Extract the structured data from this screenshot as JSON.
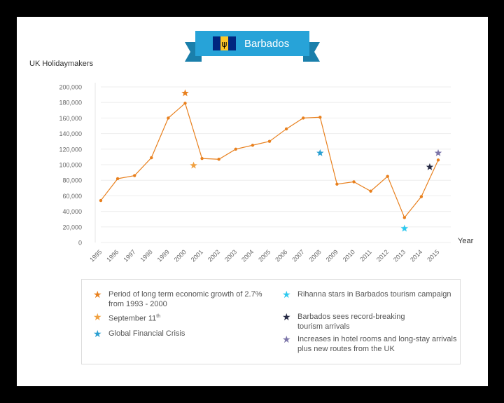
{
  "chart_data": {
    "type": "line",
    "title": "Barbados",
    "ylabel": "UK Holidaymakers",
    "xlabel": "Year",
    "ylim": [
      0,
      200000
    ],
    "yticks": [
      0,
      20000,
      40000,
      60000,
      80000,
      100000,
      120000,
      140000,
      160000,
      180000,
      200000
    ],
    "ytick_labels": [
      "0",
      "20,000",
      "40,000",
      "60,000",
      "80,000",
      "100,000",
      "120,000",
      "140,000",
      "160,000",
      "180,000",
      "200,000"
    ],
    "categories": [
      "1995",
      "1996",
      "1997",
      "1998",
      "1999",
      "2000",
      "2001",
      "2002",
      "2003",
      "2004",
      "2005",
      "2006",
      "2007",
      "2008",
      "2009",
      "2010",
      "2011",
      "2012",
      "2013",
      "2014",
      "2015"
    ],
    "series": [
      {
        "values": [
          54000,
          82000,
          86000,
          109000,
          160000,
          179000,
          108000,
          107000,
          120000,
          125000,
          130000,
          146000,
          160000,
          161000,
          75000,
          78000,
          66000,
          85000,
          32000,
          59000,
          106000
        ]
      }
    ],
    "markers": [
      {
        "legend": 0,
        "x": 2000,
        "y": 192000
      },
      {
        "legend": 1,
        "x": 2000.5,
        "y": 99000
      },
      {
        "legend": 2,
        "x": 2008,
        "y": 115000
      },
      {
        "legend": 3,
        "x": 2013,
        "y": 18000
      },
      {
        "legend": 4,
        "x": 2014.5,
        "y": 97000
      },
      {
        "legend": 5,
        "x": 2015,
        "y": 115000
      }
    ],
    "legend": [
      {
        "label": "Period of long term economic growth of 2.7%\nfrom 1993 - 2000",
        "color": "#e8801e"
      },
      {
        "label": "September 11",
        "sup": "th",
        "color": "#f0a040"
      },
      {
        "label": "Global Financial Crisis",
        "color": "#2a9fd1"
      },
      {
        "label": "Rihanna stars in Barbados tourism campaign",
        "color": "#2ec9ef"
      },
      {
        "label": "Barbados sees record-breaking\ntourism arrivals",
        "color": "#262a44"
      },
      {
        "label": "Increases in hotel rooms and long-stay arrivals\nplus new routes from the UK",
        "color": "#7b74a8"
      }
    ],
    "line_color": "#e8801e",
    "grid": true
  },
  "banner": {
    "color": "#27a3d8",
    "dark_color": "#1a7fab",
    "flag": "barbados-flag"
  }
}
